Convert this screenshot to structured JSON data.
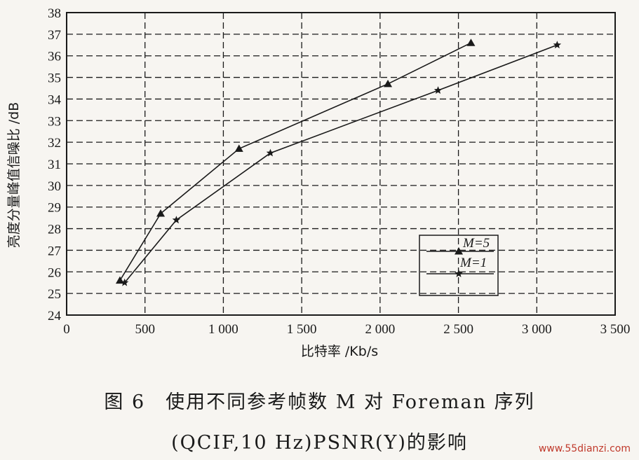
{
  "chart_data": {
    "type": "line",
    "xlabel": "比特率 /Kb/s",
    "ylabel": "亮度分量峰值信噪比 /dB",
    "xlim": [
      0,
      3500
    ],
    "ylim": [
      24,
      38
    ],
    "xticks": [
      0,
      500,
      1000,
      1500,
      2000,
      2500,
      3000,
      3500
    ],
    "xtick_labels": [
      "0",
      "500",
      "1 000",
      "1 500",
      "2 000",
      "2 500",
      "3 000",
      "3 500"
    ],
    "yticks": [
      24,
      25,
      26,
      27,
      28,
      29,
      30,
      31,
      32,
      33,
      34,
      35,
      36,
      37,
      38
    ],
    "grid": true,
    "legend_position": "lower-right",
    "series": [
      {
        "name": "M=5",
        "marker": "triangle",
        "x": [
          340,
          600,
          1100,
          2050,
          2580
        ],
        "y": [
          25.6,
          28.7,
          31.7,
          34.7,
          36.6
        ]
      },
      {
        "name": "M=1",
        "marker": "star",
        "x": [
          370,
          700,
          1300,
          2370,
          3130
        ],
        "y": [
          25.5,
          28.4,
          31.5,
          34.4,
          36.5
        ]
      }
    ]
  },
  "caption": {
    "line1": "图 6　使用不同参考帧数 M 对 Foreman 序列",
    "line2": "(QCIF,10 Hz)PSNR(Y)的影响"
  },
  "watermark": "www.55dianzi.com"
}
